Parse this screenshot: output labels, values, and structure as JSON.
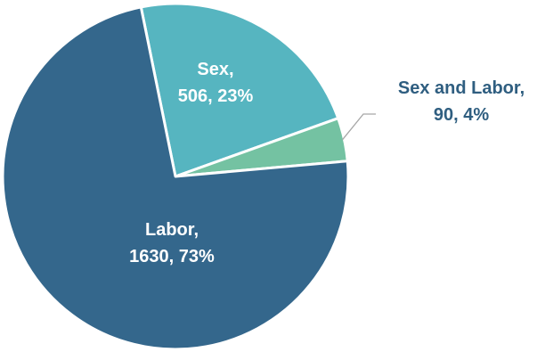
{
  "chart_data": {
    "type": "pie",
    "title": "",
    "slices": [
      {
        "label": "Sex",
        "value": 506,
        "percent": "23%",
        "color": "#56b5c0",
        "label_color": "#ffffff"
      },
      {
        "label": "Sex and Labor",
        "value": 90,
        "percent": "4%",
        "color": "#74c2a2",
        "label_color": "#2f5e80"
      },
      {
        "label": "Labor",
        "value": 1630,
        "percent": "73%",
        "color": "#34678c",
        "label_color": "#ffffff"
      }
    ],
    "start_angle_deg": -11.5,
    "direction": "clockwise",
    "border_color": "#ffffff",
    "leader_line_color": "#a6a6a6"
  }
}
